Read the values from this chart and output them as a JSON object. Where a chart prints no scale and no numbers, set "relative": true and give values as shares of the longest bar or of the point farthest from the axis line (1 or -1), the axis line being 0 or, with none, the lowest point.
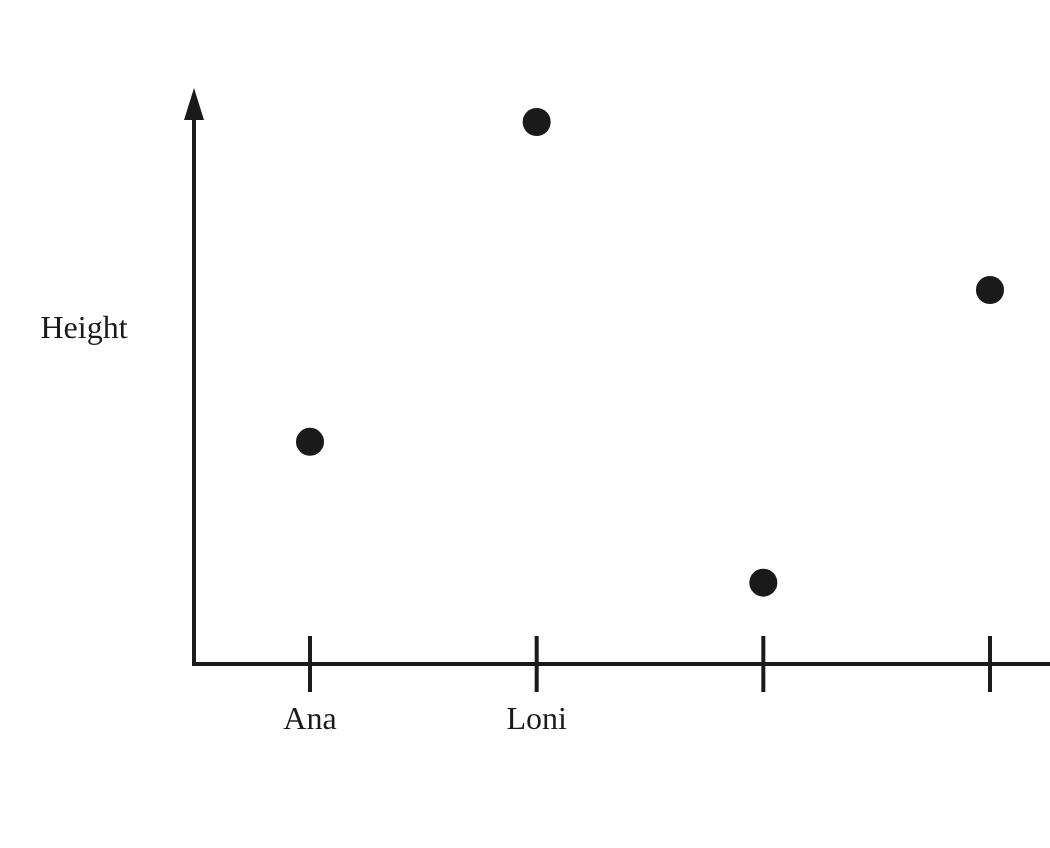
{
  "chart_data": {
    "type": "scatter",
    "ylabel": "Height",
    "categories": [
      "Ana",
      "Loni",
      null,
      null
    ],
    "relative": true,
    "values": [
      0.41,
      1,
      0.15,
      0.69
    ],
    "color": "#1a1a1a",
    "marker": "circle"
  }
}
